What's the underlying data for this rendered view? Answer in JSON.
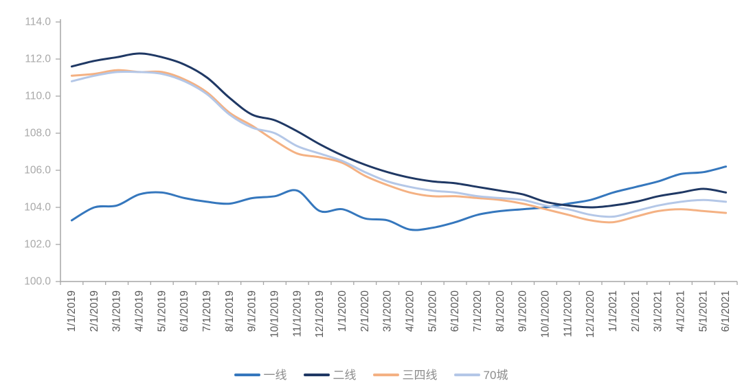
{
  "chart_data": {
    "type": "line",
    "title": "",
    "xlabel": "",
    "ylabel": "",
    "grid": false,
    "smooth_lines": true,
    "legend_position": "bottom-center",
    "ylim": [
      100,
      114
    ],
    "ytick_step": 2,
    "ytick_labels": [
      "100.0",
      "102.0",
      "104.0",
      "106.0",
      "108.0",
      "110.0",
      "112.0",
      "114.0"
    ],
    "x": [
      "1/1/2019",
      "2/1/2019",
      "3/1/2019",
      "4/1/2019",
      "5/1/2019",
      "6/1/2019",
      "7/1/2019",
      "8/1/2019",
      "9/1/2019",
      "10/1/2019",
      "11/1/2019",
      "12/1/2019",
      "1/1/2020",
      "2/1/2020",
      "3/1/2020",
      "4/1/2020",
      "5/1/2020",
      "6/1/2020",
      "7/1/2020",
      "8/1/2020",
      "9/1/2020",
      "10/1/2020",
      "11/1/2020",
      "12/1/2020",
      "1/1/2021",
      "2/1/2021",
      "3/1/2021",
      "4/1/2021",
      "5/1/2021",
      "6/1/2021"
    ],
    "series": [
      {
        "name": "一线",
        "color": "#3577BD",
        "values": [
          103.3,
          104.0,
          104.1,
          104.7,
          104.8,
          104.5,
          104.3,
          104.2,
          104.5,
          104.6,
          104.9,
          103.8,
          103.9,
          103.4,
          103.3,
          102.8,
          102.9,
          103.2,
          103.6,
          103.8,
          103.9,
          104.0,
          104.2,
          104.4,
          104.8,
          105.1,
          105.4,
          105.8,
          105.9,
          106.2
        ]
      },
      {
        "name": "二线",
        "color": "#1F3864",
        "values": [
          111.6,
          111.9,
          112.1,
          112.3,
          112.1,
          111.7,
          111.0,
          109.9,
          109.0,
          108.7,
          108.1,
          107.4,
          106.8,
          106.3,
          105.9,
          105.6,
          105.4,
          105.3,
          105.1,
          104.9,
          104.7,
          104.3,
          104.1,
          104.0,
          104.1,
          104.3,
          104.6,
          104.8,
          105.0,
          104.8
        ]
      },
      {
        "name": "三四线",
        "color": "#F4B183",
        "values": [
          111.1,
          111.2,
          111.4,
          111.3,
          111.3,
          110.9,
          110.2,
          109.1,
          108.4,
          107.6,
          106.9,
          106.7,
          106.4,
          105.7,
          105.2,
          104.8,
          104.6,
          104.6,
          104.5,
          104.4,
          104.2,
          103.9,
          103.6,
          103.3,
          103.2,
          103.5,
          103.8,
          103.9,
          103.8,
          103.7
        ]
      },
      {
        "name": "70城",
        "color": "#B4C7E7",
        "values": [
          110.8,
          111.1,
          111.3,
          111.3,
          111.2,
          110.8,
          110.1,
          109.0,
          108.3,
          108.0,
          107.3,
          106.9,
          106.5,
          105.9,
          105.4,
          105.1,
          104.9,
          104.8,
          104.6,
          104.5,
          104.4,
          104.1,
          103.9,
          103.6,
          103.5,
          103.8,
          104.1,
          104.3,
          104.4,
          104.3
        ]
      }
    ],
    "colors": {
      "axis": "#A6A6A6",
      "y_tick_label": "#A8A8A8",
      "x_tick_label": "#595959",
      "legend_text": "#8C8C8C",
      "background": "#FFFFFF"
    }
  }
}
